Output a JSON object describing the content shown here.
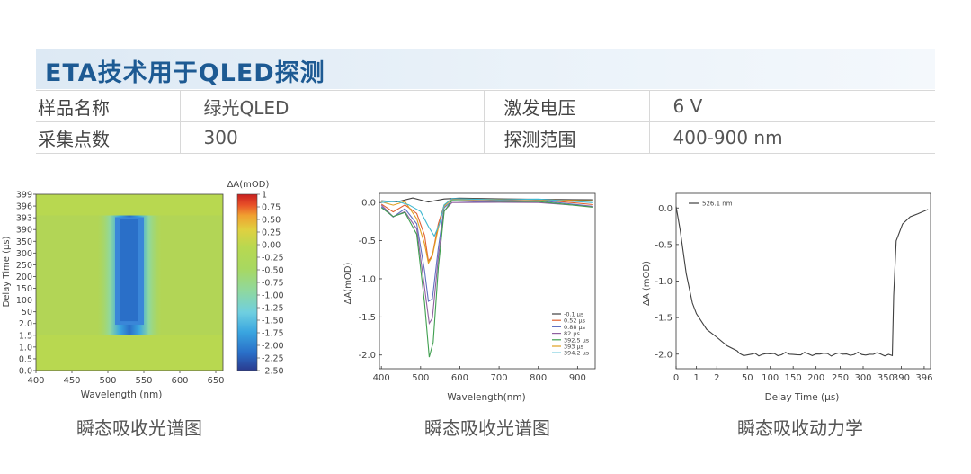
{
  "header": {
    "title": "ETA技术用于QLED探测"
  },
  "info_table": {
    "rows": [
      {
        "label1": "样品名称",
        "value1": "绿光QLED",
        "label2": "激发电压",
        "value2": "6 V"
      },
      {
        "label1": "采集点数",
        "value1": "300",
        "label2": "探测范围",
        "value2": "400-900 nm"
      }
    ]
  },
  "captions": [
    "瞬态吸收光谱图",
    "瞬态吸收光谱图",
    "瞬态吸收动力学"
  ],
  "chart_data": [
    {
      "type": "heatmap",
      "xlabel": "Wavelength (nm)",
      "ylabel": "Delay Time  (μs)",
      "x_ticks": [
        400,
        450,
        500,
        550,
        600,
        650
      ],
      "xlim": [
        400,
        660
      ],
      "y_ticks": [
        "0.0",
        "0.5",
        "1.0",
        "1.5",
        "2.0",
        "50",
        "100",
        "150",
        "200",
        "250",
        "300",
        "350",
        "390",
        "393",
        "396",
        "399"
      ],
      "colorbar_label": "ΔA(mOD)",
      "colorbar_ticks": [
        "1",
        "0.75",
        "0.50",
        "0.25",
        "0.00",
        "-0.25",
        "-0.50",
        "-0.75",
        "-1.00",
        "-1.25",
        "-1.50",
        "-1.75",
        "-2.00",
        "-2.25",
        "-2.50"
      ],
      "colorbar_range": [
        -2.5,
        1
      ],
      "colors": [
        "#2a3b8f",
        "#2a6fc8",
        "#3aa6e0",
        "#6fcfe0",
        "#8fd8a0",
        "#a8d860",
        "#b8d850",
        "#e0d040",
        "#f0a030",
        "#e85028",
        "#c82020"
      ]
    },
    {
      "type": "line",
      "xlabel": "Wavelength(nm)",
      "ylabel": "ΔA(mOD)",
      "xlim": [
        395,
        945
      ],
      "ylim": [
        -2.18,
        0.12
      ],
      "x_ticks": [
        400,
        500,
        600,
        700,
        800,
        900
      ],
      "y_ticks": [
        "0.0",
        "-0.5",
        "-1.0",
        "-1.5",
        "-2.0"
      ],
      "legend_position": "lower-right",
      "series": [
        {
          "name": "-0.1 μs",
          "color": "#404040",
          "points": [
            [
              400,
              0.03
            ],
            [
              440,
              0.02
            ],
            [
              480,
              0.04
            ],
            [
              520,
              0.02
            ],
            [
              560,
              0.05
            ],
            [
              600,
              0.04
            ],
            [
              700,
              0.03
            ],
            [
              800,
              0.03
            ],
            [
              940,
              0.02
            ]
          ]
        },
        {
          "name": "0.52 μs",
          "color": "#e06030",
          "points": [
            [
              400,
              0
            ],
            [
              430,
              -0.12
            ],
            [
              460,
              -0.05
            ],
            [
              490,
              -0.15
            ],
            [
              510,
              -0.45
            ],
            [
              520,
              -0.75
            ],
            [
              530,
              -0.7
            ],
            [
              545,
              -0.3
            ],
            [
              560,
              -0.05
            ],
            [
              580,
              0.03
            ],
            [
              700,
              0.02
            ],
            [
              800,
              0.02
            ],
            [
              940,
              -0.02
            ]
          ]
        },
        {
          "name": "0.88 μs",
          "color": "#6070c0",
          "points": [
            [
              400,
              -0.05
            ],
            [
              430,
              -0.17
            ],
            [
              460,
              -0.08
            ],
            [
              490,
              -0.3
            ],
            [
              510,
              -0.9
            ],
            [
              520,
              -1.3
            ],
            [
              530,
              -1.25
            ],
            [
              545,
              -0.6
            ],
            [
              560,
              -0.08
            ],
            [
              580,
              0.03
            ],
            [
              700,
              0.02
            ],
            [
              800,
              0.03
            ],
            [
              940,
              -0.03
            ]
          ]
        },
        {
          "name": "82 μs",
          "color": "#9060a0",
          "points": [
            [
              400,
              -0.05
            ],
            [
              430,
              -0.18
            ],
            [
              460,
              -0.1
            ],
            [
              490,
              -0.35
            ],
            [
              510,
              -1.1
            ],
            [
              522,
              -1.6
            ],
            [
              530,
              -1.5
            ],
            [
              545,
              -0.7
            ],
            [
              560,
              -0.1
            ],
            [
              580,
              0.02
            ],
            [
              700,
              0.02
            ],
            [
              800,
              0.02
            ],
            [
              940,
              -0.05
            ]
          ]
        },
        {
          "name": "392.5 μs",
          "color": "#40a050",
          "points": [
            [
              400,
              -0.08
            ],
            [
              430,
              -0.2
            ],
            [
              460,
              -0.12
            ],
            [
              490,
              -0.4
            ],
            [
              510,
              -1.3
            ],
            [
              522,
              -2.02
            ],
            [
              532,
              -1.85
            ],
            [
              545,
              -0.85
            ],
            [
              560,
              -0.1
            ],
            [
              580,
              0.03
            ],
            [
              700,
              0.01
            ],
            [
              800,
              0.02
            ],
            [
              940,
              -0.08
            ]
          ]
        },
        {
          "name": "393 μs",
          "color": "#e0a020",
          "points": [
            [
              400,
              0.02
            ],
            [
              430,
              -0.05
            ],
            [
              460,
              0
            ],
            [
              490,
              -0.2
            ],
            [
              510,
              -0.55
            ],
            [
              520,
              -0.78
            ],
            [
              530,
              -0.72
            ],
            [
              545,
              -0.35
            ],
            [
              560,
              -0.05
            ],
            [
              580,
              0.03
            ],
            [
              700,
              0.02
            ],
            [
              800,
              0.02
            ],
            [
              940,
              0.01
            ]
          ]
        },
        {
          "name": "394.2 μs",
          "color": "#40b8d0",
          "points": [
            [
              400,
              0.02
            ],
            [
              440,
              0
            ],
            [
              470,
              -0.02
            ],
            [
              500,
              -0.1
            ],
            [
              520,
              -0.3
            ],
            [
              535,
              -0.42
            ],
            [
              548,
              -0.28
            ],
            [
              560,
              -0.05
            ],
            [
              580,
              0.04
            ],
            [
              700,
              0.03
            ],
            [
              800,
              0.03
            ],
            [
              940,
              0.01
            ]
          ]
        }
      ]
    },
    {
      "type": "line",
      "xlabel": "Delay Time  (μs)",
      "ylabel": "ΔA (mOD)",
      "ylim": [
        -2.2,
        0.2
      ],
      "x_ticks": [
        "0",
        "1",
        "2",
        "50",
        "100",
        "150",
        "200",
        "250",
        "300",
        "350",
        "390",
        "396"
      ],
      "y_ticks": [
        "0.0",
        "-0.5",
        "-1.0",
        "-1.5",
        "-2.0"
      ],
      "series": [
        {
          "name": "526.1 nm",
          "color": "#404040",
          "points": [
            [
              0,
              0.02
            ],
            [
              0.2,
              -0.3
            ],
            [
              0.5,
              -0.9
            ],
            [
              0.8,
              -1.3
            ],
            [
              1,
              -1.45
            ],
            [
              1.5,
              -1.65
            ],
            [
              2,
              -1.78
            ],
            [
              2.5,
              -1.88
            ],
            [
              3,
              -1.95
            ],
            [
              4,
              -2.0
            ],
            [
              6,
              -2.01
            ],
            [
              10,
              -2.0
            ]
          ]
        }
      ]
    }
  ]
}
